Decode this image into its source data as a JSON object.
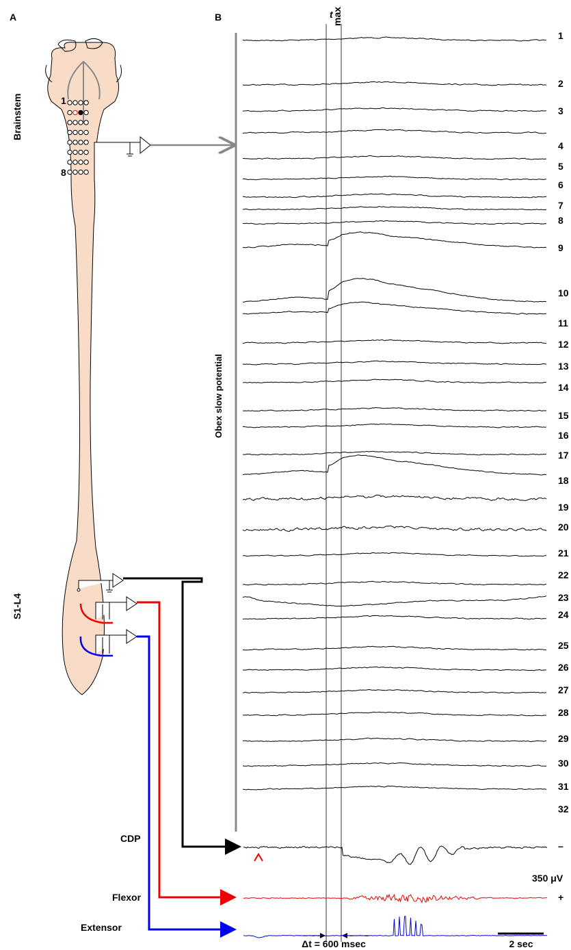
{
  "panel_a": {
    "label": "A",
    "brainstem_label": "Brainstem",
    "spinal_label": "S1-L4",
    "electrode_first": "1",
    "electrode_last": "8"
  },
  "panel_b": {
    "label": "B",
    "tmax": "t",
    "tmax_sub": "max",
    "obex_label": "Obex slow potential",
    "traces": [
      "1",
      "2",
      "3",
      "4",
      "5",
      "6",
      "7",
      "8",
      "9",
      "10",
      "11",
      "12",
      "13",
      "14",
      "15",
      "16",
      "17",
      "18",
      "19",
      "20",
      "21",
      "22",
      "23",
      "24",
      "25",
      "26",
      "27",
      "28",
      "29",
      "30",
      "31",
      "32"
    ],
    "cdp": "CDP",
    "flexor": "Flexor",
    "extensor": "Extensor",
    "scale_value": "350 μV",
    "minus": "–",
    "plus": "+",
    "delta_t": "Δt = 600 msec",
    "time_scale": "2 sec"
  }
}
